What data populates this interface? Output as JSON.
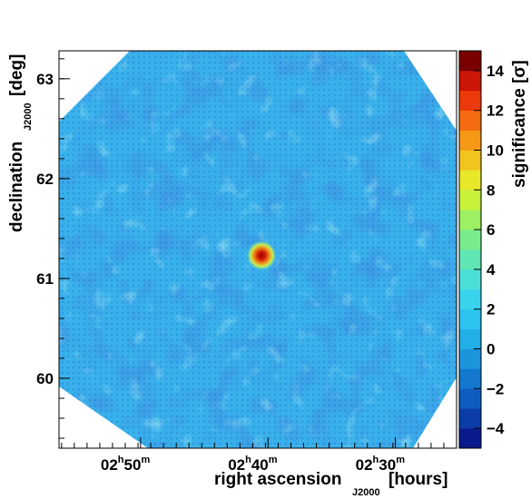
{
  "chart_data": {
    "type": "heatmap",
    "title": "",
    "xlabel": "right ascension",
    "xlabel_subscript": "J2000",
    "xlabel_unit": "[hours]",
    "ylabel": "declination",
    "ylabel_subscript": "J2000",
    "ylabel_unit": "[deg]",
    "x_range_hours": [
      2.94,
      2.42
    ],
    "y_range_deg": [
      59.3,
      63.28
    ],
    "x_ticks": [
      {
        "value": 2.8333,
        "h": "02",
        "h_sup": "h",
        "m": "50",
        "m_sup": "m"
      },
      {
        "value": 2.6667,
        "h": "02",
        "h_sup": "h",
        "m": "40",
        "m_sup": "m"
      },
      {
        "value": 2.5,
        "h": "02",
        "h_sup": "h",
        "m": "30",
        "m_sup": "m"
      }
    ],
    "y_ticks": [
      "60",
      "61",
      "62",
      "63"
    ],
    "colorbar": {
      "label": "significance",
      "unit_symbol": "σ",
      "range": [
        -5,
        15
      ],
      "ticks": [
        "−4",
        "−2",
        "0",
        "2",
        "4",
        "6",
        "8",
        "10",
        "12",
        "14"
      ],
      "colors": [
        "#0a1a8c",
        "#0b3ca8",
        "#0e5cc0",
        "#1478cf",
        "#1c95dc",
        "#22aee6",
        "#2cc3ee",
        "#3ad3ee",
        "#4adfd6",
        "#5fe6b4",
        "#7aeb8c",
        "#9cf062",
        "#c6f23a",
        "#e8e82a",
        "#f4c41e",
        "#f69816",
        "#f46a10",
        "#ec3a0c",
        "#cc1608",
        "#7a0000"
      ]
    },
    "background_significance_range": [
      -3,
      3
    ],
    "hotspot": {
      "ra_hours": 2.675,
      "dec_deg": 61.23,
      "peak_significance": 12.5
    }
  }
}
